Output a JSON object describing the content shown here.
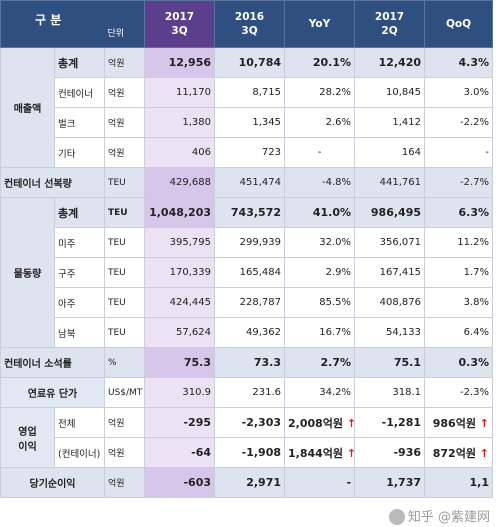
{
  "header": {
    "gubun": "구 분",
    "unit_label": "단위",
    "col_2017q3": [
      "2017",
      "3Q"
    ],
    "col_2016q3": [
      "2016",
      "3Q"
    ],
    "col_yoy": "YoY",
    "col_2017q2": [
      "2017",
      "2Q"
    ],
    "col_qoq": "QoQ"
  },
  "groups": {
    "sales": "매출액",
    "container_ship": "컨테이너 선복량",
    "volume": "물동량",
    "container_consumption": "컨테이너 소석률",
    "fuel_price": "연료유 단가",
    "op_income": [
      "영업",
      "이익"
    ],
    "net_income": "당기순이익"
  },
  "rows": [
    {
      "sub": "총계",
      "unit": "억원",
      "v": [
        "12,956",
        "10,784",
        "20.1%",
        "12,420",
        "4.3%"
      ]
    },
    {
      "sub": "컨테이너",
      "unit": "억원",
      "v": [
        "11,170",
        "8,715",
        "28.2%",
        "10,845",
        "3.0%"
      ]
    },
    {
      "sub": "벌크",
      "unit": "억원",
      "v": [
        "1,380",
        "1,345",
        "2.6%",
        "1,412",
        "-2.2%"
      ]
    },
    {
      "sub": "기타",
      "unit": "억원",
      "v": [
        "406",
        "723",
        "-",
        "164",
        "-"
      ]
    },
    {
      "unit": "TEU",
      "v": [
        "429,688",
        "451,474",
        "-4.8%",
        "441,761",
        "-2.7%"
      ]
    },
    {
      "sub": "총계",
      "unit": "TEU",
      "v": [
        "1,048,203",
        "743,572",
        "41.0%",
        "986,495",
        "6.3%"
      ]
    },
    {
      "sub": "미주",
      "unit": "TEU",
      "v": [
        "395,795",
        "299,939",
        "32.0%",
        "356,071",
        "11.2%"
      ]
    },
    {
      "sub": "구주",
      "unit": "TEU",
      "v": [
        "170,339",
        "165,484",
        "2.9%",
        "167,415",
        "1.7%"
      ]
    },
    {
      "sub": "아주",
      "unit": "TEU",
      "v": [
        "424,445",
        "228,787",
        "85.5%",
        "408,876",
        "3.8%"
      ]
    },
    {
      "sub": "남북",
      "unit": "TEU",
      "v": [
        "57,624",
        "49,362",
        "16.7%",
        "54,133",
        "6.4%"
      ]
    },
    {
      "unit": "%",
      "v": [
        "75.3",
        "73.3",
        "2.7%",
        "75.1",
        "0.3%"
      ]
    },
    {
      "unit": "US$/MT",
      "v": [
        "310.9",
        "231.6",
        "34.2%",
        "318.1",
        "-2.3%"
      ]
    },
    {
      "sub": "전체",
      "unit": "억원",
      "v": [
        "-295",
        "-2,303",
        "2,008억원",
        "-1,281",
        "986억원"
      ]
    },
    {
      "sub": "(컨테이너)",
      "unit": "억원",
      "v": [
        "-64",
        "-1,908",
        "1,844억원",
        "-936",
        "872억원"
      ]
    },
    {
      "unit": "억원",
      "v": [
        "-603",
        "2,971",
        "-",
        "1,737",
        "1,1"
      ]
    }
  ],
  "arrow_glyph": "↑",
  "watermark": "知乎 @紫建网"
}
